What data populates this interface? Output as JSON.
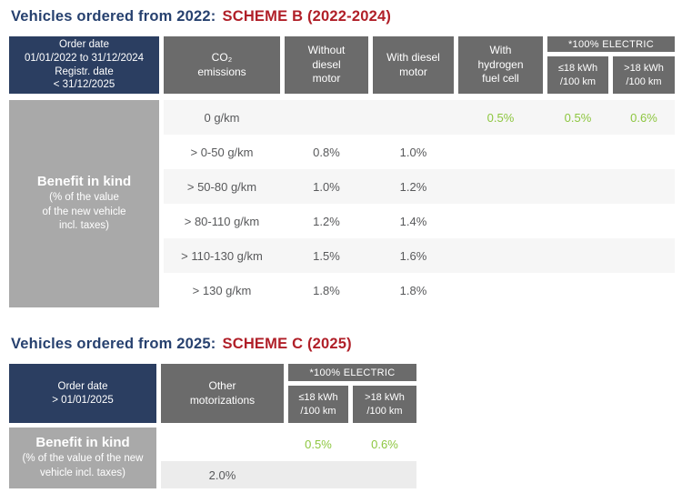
{
  "colors": {
    "title_navy": "#27416f",
    "title_red": "#b01f28",
    "navy": "#2b3e61",
    "header_gray": "#6b6b6b",
    "benefit_gray": "#a9a9a9",
    "stripe_light": "#f6f6f6",
    "stripe_mid": "#ececec",
    "text_gray": "#58595b",
    "green": "#8dc63f"
  },
  "table1": {
    "title_prefix": "Vehicles ordered from 2022:",
    "title_scheme": "SCHEME B (2022-2024)",
    "header": {
      "order_date": "Order date\n01/01/2022 to 31/12/2024\nRegistr. date\n< 31/12/2025",
      "co2": "CO₂\nemissions",
      "without_diesel": "Without\ndiesel\nmotor",
      "with_diesel": "With diesel\nmotor",
      "hydrogen": "With\nhydrogen\nfuel cell",
      "electric": "*100% ELECTRIC",
      "electric_le18": "≤18 kWh\n/100 km",
      "electric_gt18": ">18 kWh\n/100 km"
    },
    "benefit": {
      "title": "Benefit in kind",
      "note": "(% of the value\nof the new vehicle\nincl. taxes)"
    },
    "rows": [
      {
        "co2": "0 g/km",
        "without": "",
        "with": "",
        "hydrogen": "0.5%",
        "le18": "0.5%",
        "gt18": "0.6%"
      },
      {
        "co2": "> 0-50 g/km",
        "without": "0.8%",
        "with": "1.0%",
        "hydrogen": "",
        "le18": "",
        "gt18": ""
      },
      {
        "co2": "> 50-80 g/km",
        "without": "1.0%",
        "with": "1.2%",
        "hydrogen": "",
        "le18": "",
        "gt18": ""
      },
      {
        "co2": "> 80-110 g/km",
        "without": "1.2%",
        "with": "1.4%",
        "hydrogen": "",
        "le18": "",
        "gt18": ""
      },
      {
        "co2": "> 110-130 g/km",
        "without": "1.5%",
        "with": "1.6%",
        "hydrogen": "",
        "le18": "",
        "gt18": ""
      },
      {
        "co2": "> 130 g/km",
        "without": "1.8%",
        "with": "1.8%",
        "hydrogen": "",
        "le18": "",
        "gt18": ""
      }
    ]
  },
  "table2": {
    "title_prefix": "Vehicles ordered from 2025:",
    "title_scheme": "SCHEME C (2025)",
    "header": {
      "order_date": "Order date\n> 01/01/2025",
      "other": "Other\nmotorizations",
      "electric": "*100% ELECTRIC",
      "electric_le18": "≤18 kWh\n/100 km",
      "electric_gt18": ">18 kWh\n/100 km"
    },
    "benefit": {
      "title": "Benefit in kind",
      "note": "(% of the value of the new\nvehicle incl. taxes)"
    },
    "rows": [
      {
        "other": "",
        "le18": "0.5%",
        "gt18": "0.6%"
      },
      {
        "other": "2.0%",
        "le18": "",
        "gt18": ""
      }
    ]
  }
}
